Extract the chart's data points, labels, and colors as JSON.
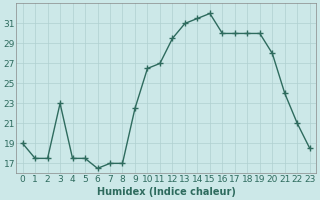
{
  "x": [
    0,
    1,
    2,
    3,
    4,
    5,
    6,
    7,
    8,
    9,
    10,
    11,
    12,
    13,
    14,
    15,
    16,
    17,
    18,
    19,
    20,
    21,
    22,
    23
  ],
  "y": [
    19,
    17.5,
    17.5,
    23,
    17.5,
    17.5,
    16.5,
    17,
    17,
    22.5,
    26.5,
    27,
    29.5,
    31,
    31.5,
    32,
    30,
    30,
    30,
    30,
    28,
    24,
    21,
    18.5
  ],
  "line_color": "#2e6b5e",
  "marker": "+",
  "marker_size": 4,
  "marker_lw": 1.0,
  "line_width": 1.0,
  "bg_color": "#cce8e8",
  "grid_color": "#b0d0d0",
  "xlabel": "Humidex (Indice chaleur)",
  "ylim": [
    16,
    33
  ],
  "xlim": [
    -0.5,
    23.5
  ],
  "yticks": [
    17,
    19,
    21,
    23,
    25,
    27,
    29,
    31
  ],
  "xtick_labels": [
    "0",
    "1",
    "2",
    "3",
    "4",
    "5",
    "6",
    "7",
    "8",
    "9",
    "10",
    "11",
    "12",
    "13",
    "14",
    "15",
    "16",
    "17",
    "18",
    "19",
    "20",
    "21",
    "22",
    "23"
  ],
  "xlabel_fontsize": 7,
  "tick_fontsize": 6.5,
  "xlabel_color": "#2e6b5e",
  "tick_color": "#2e6b5e",
  "spine_color": "#888888"
}
